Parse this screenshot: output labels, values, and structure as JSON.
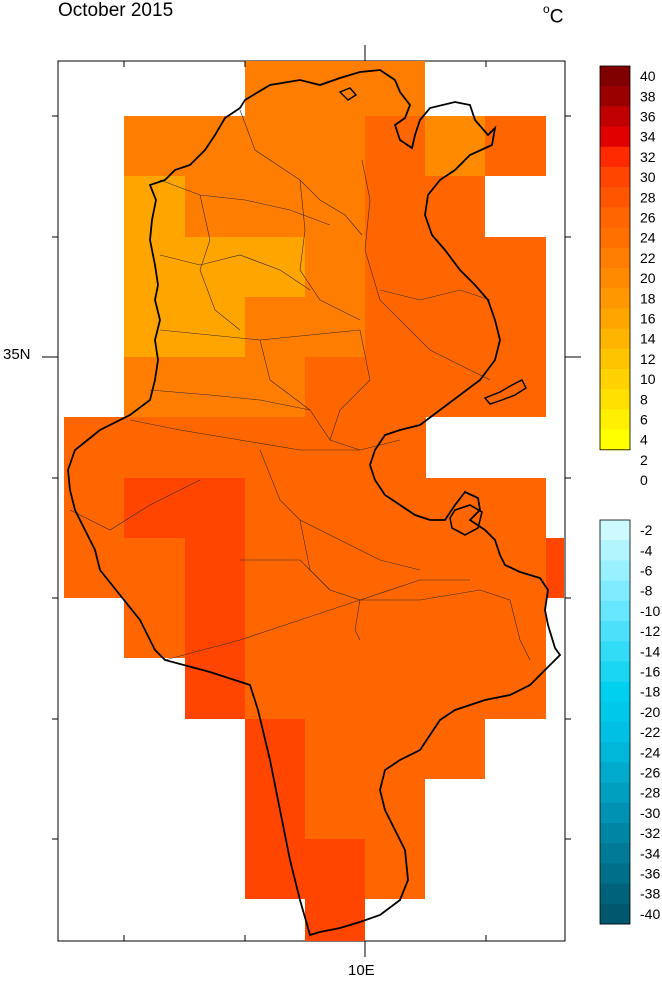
{
  "title": "October 2015",
  "unit_symbol": "C",
  "unit_degree": "o",
  "axes": {
    "lat_label": "35N",
    "lon_label": "10E"
  },
  "colorbar": {
    "positive_levels": [
      {
        "label": "40",
        "color": "#800000"
      },
      {
        "label": "38",
        "color": "#9a0000"
      },
      {
        "label": "36",
        "color": "#c00000"
      },
      {
        "label": "34",
        "color": "#e00000"
      },
      {
        "label": "32",
        "color": "#ff2a00"
      },
      {
        "label": "30",
        "color": "#ff4500"
      },
      {
        "label": "28",
        "color": "#ff5500"
      },
      {
        "label": "26",
        "color": "#ff6600"
      },
      {
        "label": "24",
        "color": "#ff7000"
      },
      {
        "label": "22",
        "color": "#ff7d00"
      },
      {
        "label": "20",
        "color": "#ff8a00"
      },
      {
        "label": "18",
        "color": "#ff9800"
      },
      {
        "label": "16",
        "color": "#ffa500"
      },
      {
        "label": "14",
        "color": "#ffb400"
      },
      {
        "label": "12",
        "color": "#ffc400"
      },
      {
        "label": "10",
        "color": "#ffd200"
      },
      {
        "label": "8",
        "color": "#ffe000"
      },
      {
        "label": "6",
        "color": "#ffef00"
      },
      {
        "label": "4",
        "color": "#ffff00"
      }
    ],
    "middle_labels": [
      "2",
      "0"
    ],
    "negative_levels": [
      {
        "label": "-2",
        "color": "#ccfaff"
      },
      {
        "label": "-4",
        "color": "#b3f5ff"
      },
      {
        "label": "-6",
        "color": "#99f0ff"
      },
      {
        "label": "-8",
        "color": "#80ebff"
      },
      {
        "label": "-10",
        "color": "#66e6ff"
      },
      {
        "label": "-12",
        "color": "#4de0fa"
      },
      {
        "label": "-14",
        "color": "#33dcf6"
      },
      {
        "label": "-16",
        "color": "#1ad6f2"
      },
      {
        "label": "-18",
        "color": "#00d0f0"
      },
      {
        "label": "-20",
        "color": "#00c8ea"
      },
      {
        "label": "-22",
        "color": "#00c0e4"
      },
      {
        "label": "-24",
        "color": "#00b6d9"
      },
      {
        "label": "-26",
        "color": "#00aacd"
      },
      {
        "label": "-28",
        "color": "#009ebf"
      },
      {
        "label": "-30",
        "color": "#0092b2"
      },
      {
        "label": "-32",
        "color": "#0086a5"
      },
      {
        "label": "-34",
        "color": "#007a97"
      },
      {
        "label": "-36",
        "color": "#006f89"
      },
      {
        "label": "-38",
        "color": "#00637b"
      },
      {
        "label": "-40",
        "color": "#00576e"
      }
    ]
  },
  "grid_colors": {
    "c14": "#ffa500",
    "c18": "#ff8a00",
    "c20": "#ff7d00",
    "c22": "#ff7000",
    "c24": "#ff6600",
    "c26": "#ff5500",
    "c28": "#ff4500"
  }
}
